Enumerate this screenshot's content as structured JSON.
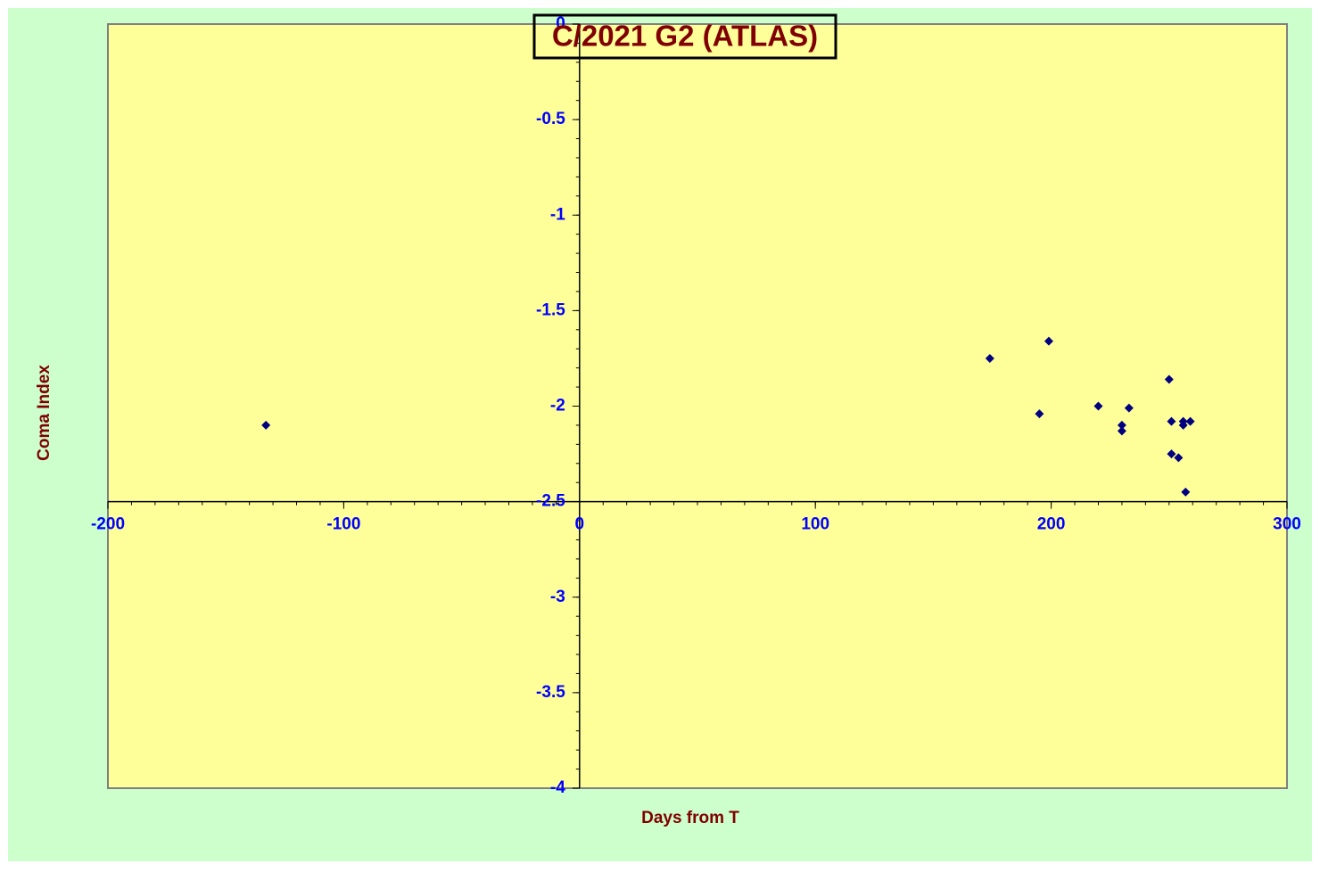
{
  "chart_data": {
    "type": "scatter",
    "title": "C/2021 G2 (ATLAS)",
    "x_label": "Days from T",
    "y_label": "Coma Index",
    "xlim": [
      -200,
      300
    ],
    "xticks": [
      -200,
      -100,
      0,
      100,
      200,
      300
    ],
    "ylim": [
      -4,
      0
    ],
    "yticks": [
      0,
      -0.5,
      -1,
      -1.5,
      -2,
      -2.5,
      -3,
      -3.5,
      -4
    ],
    "x_axis_crosses_y": -2.5,
    "y_axis_crosses_x": 0,
    "series": [
      {
        "name": "Coma Index",
        "color": "#000080",
        "x": [
          -133,
          174,
          199,
          195,
          220,
          230,
          230,
          233,
          250,
          251,
          251,
          254,
          256,
          256,
          259,
          257
        ],
        "values": [
          -2.1,
          -1.75,
          -1.66,
          -2.04,
          -2.0,
          -2.1,
          -2.13,
          -2.01,
          -1.86,
          -2.08,
          -2.25,
          -2.27,
          -2.08,
          -2.1,
          -2.08,
          -2.45
        ]
      }
    ]
  }
}
